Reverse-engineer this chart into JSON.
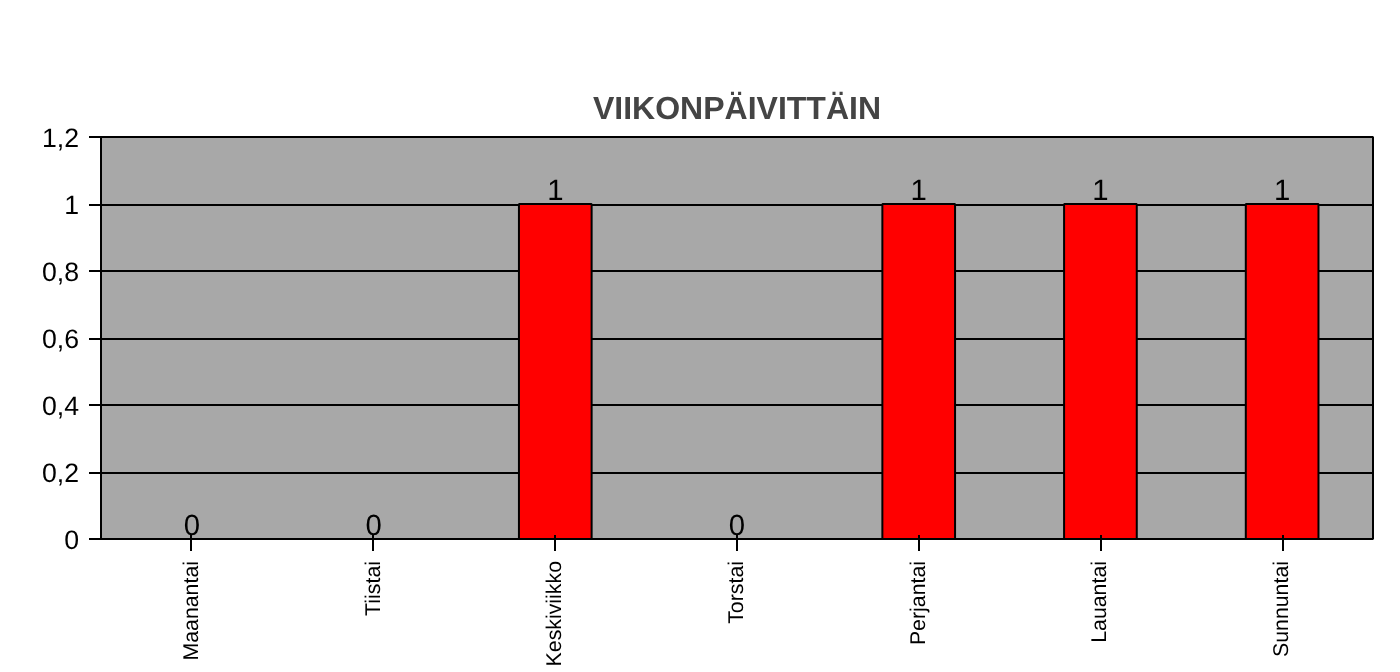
{
  "chart_data": {
    "type": "bar",
    "title": "VIIKONPÄIVITTÄIN",
    "categories": [
      "Maanantai",
      "Tiistai",
      "Keskiviikko",
      "Torstai",
      "Perjantai",
      "Lauantai",
      "Sunnuntai"
    ],
    "values": [
      0,
      0,
      1,
      0,
      1,
      1,
      1
    ],
    "color": "#ff0000",
    "ylim": [
      0,
      1.2
    ],
    "yticks": [
      0,
      {
        "value": 0.2,
        "label": "0,2"
      },
      {
        "value": 0.4,
        "label": "0,4"
      },
      {
        "value": 0.6,
        "label": "0,6"
      },
      {
        "value": 0.8,
        "label": "0,8"
      },
      1,
      {
        "value": 1.2,
        "label": "1,2"
      }
    ],
    "grid": "y",
    "data_labels": true
  }
}
